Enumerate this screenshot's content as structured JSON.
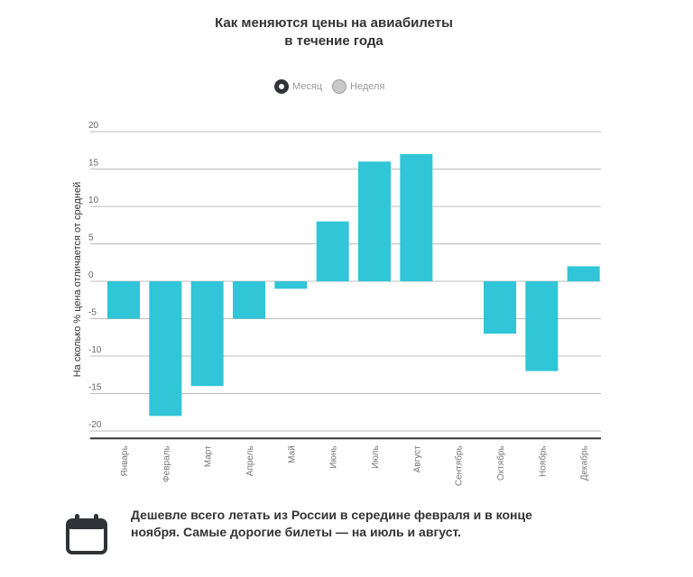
{
  "header": {
    "title_line1": "Как меняются цены на авиабилеты",
    "title_line2": "в течение года"
  },
  "toggles": {
    "month_label": "Месяц",
    "week_label": "Неделя",
    "selected": "month"
  },
  "colors": {
    "bar": "#30c5d7",
    "grid": "#bcbcbc",
    "axis": "#333333",
    "text": "#333333"
  },
  "chart_data": {
    "type": "bar",
    "title": "Как меняются цены на авиабилеты в течение года",
    "xlabel": "",
    "ylabel": "На сколько % цена отличается от средней",
    "categories": [
      "Январь",
      "Февраль",
      "Март",
      "Апрель",
      "Май",
      "Июнь",
      "Июль",
      "Август",
      "Сентябрь",
      "Октябрь",
      "Ноябрь",
      "Декабрь"
    ],
    "values": [
      -5,
      -18,
      -14,
      -5,
      -1,
      8,
      16,
      17,
      0,
      -7,
      -12,
      2
    ],
    "yticks": [
      20,
      15,
      10,
      5,
      0,
      -5,
      -10,
      -15,
      -20
    ],
    "ylim": [
      -21,
      20
    ],
    "grid": true,
    "legend": "none"
  },
  "footer": {
    "icon": "calendar-icon",
    "note": "Дешевле всего летать из России в середине февраля и в конце ноября. Самые дорогие билеты — на июль и август."
  }
}
